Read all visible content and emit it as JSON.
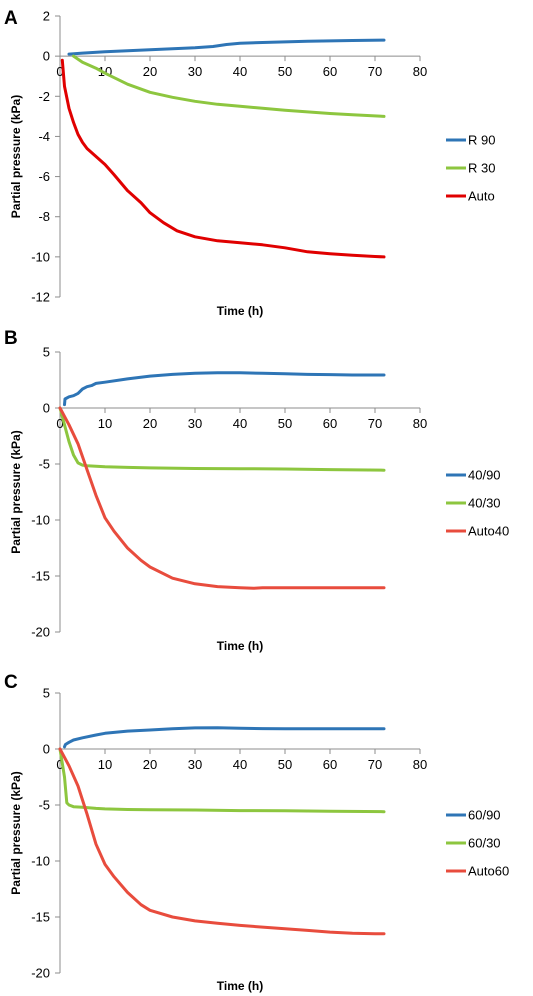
{
  "chart_data": [
    {
      "type": "line",
      "panel_label": "A",
      "xlabel": "Time (h)",
      "ylabel": "Partial pressure (kPa)",
      "xlim": [
        0,
        80
      ],
      "ylim": [
        -12,
        2
      ],
      "xticks": [
        0,
        10,
        20,
        30,
        40,
        50,
        60,
        70,
        80
      ],
      "yticks": [
        2,
        0,
        -2,
        -4,
        -6,
        -8,
        -10,
        -12
      ],
      "grid": false,
      "legend": "right",
      "series": [
        {
          "name": "R 90",
          "color": "#2e75b6",
          "x": [
            2,
            5,
            10,
            15,
            20,
            25,
            30,
            34,
            37,
            40,
            45,
            50,
            55,
            60,
            65,
            72
          ],
          "y": [
            0.1,
            0.15,
            0.22,
            0.27,
            0.32,
            0.37,
            0.42,
            0.48,
            0.58,
            0.64,
            0.68,
            0.71,
            0.74,
            0.76,
            0.78,
            0.8
          ]
        },
        {
          "name": "R 30",
          "color": "#8dc63f",
          "x": [
            3,
            5,
            8,
            10,
            15,
            20,
            25,
            30,
            35,
            40,
            45,
            50,
            55,
            60,
            65,
            72
          ],
          "y": [
            0.0,
            -0.3,
            -0.6,
            -0.85,
            -1.4,
            -1.8,
            -2.05,
            -2.25,
            -2.4,
            -2.5,
            -2.6,
            -2.7,
            -2.78,
            -2.86,
            -2.92,
            -3.0
          ]
        },
        {
          "name": "Auto",
          "color": "#e00000",
          "x": [
            0.5,
            1,
            2,
            3,
            4,
            5,
            6,
            8,
            10,
            12,
            15,
            18,
            20,
            23,
            26,
            30,
            35,
            40,
            45,
            50,
            55,
            60,
            65,
            70,
            72
          ],
          "y": [
            -0.2,
            -1.5,
            -2.6,
            -3.3,
            -3.9,
            -4.3,
            -4.6,
            -5.0,
            -5.4,
            -5.9,
            -6.7,
            -7.3,
            -7.8,
            -8.3,
            -8.7,
            -9.0,
            -9.2,
            -9.3,
            -9.4,
            -9.55,
            -9.75,
            -9.85,
            -9.92,
            -9.98,
            -10.0
          ]
        }
      ]
    },
    {
      "type": "line",
      "panel_label": "B",
      "xlabel": "Time (h)",
      "ylabel": "Partial pressure (kPa)",
      "xlim": [
        0,
        80
      ],
      "ylim": [
        -20,
        5
      ],
      "xticks": [
        0,
        10,
        20,
        30,
        40,
        50,
        60,
        70,
        80
      ],
      "yticks": [
        5,
        0,
        -5,
        -10,
        -15,
        -20
      ],
      "grid": false,
      "legend": "right",
      "series": [
        {
          "name": "40/90",
          "color": "#2e75b6",
          "x": [
            1,
            1.1,
            2,
            3,
            4,
            5,
            6,
            7,
            8,
            10,
            15,
            20,
            25,
            30,
            35,
            40,
            45,
            50,
            55,
            60,
            65,
            72
          ],
          "y": [
            0.3,
            0.8,
            1.0,
            1.1,
            1.3,
            1.7,
            1.9,
            2.0,
            2.2,
            2.3,
            2.6,
            2.85,
            3.0,
            3.1,
            3.15,
            3.15,
            3.1,
            3.05,
            3.0,
            2.98,
            2.95,
            2.95
          ]
        },
        {
          "name": "40/30",
          "color": "#8dc63f",
          "x": [
            0,
            1,
            2,
            3,
            4,
            5,
            6,
            8,
            10,
            15,
            20,
            30,
            40,
            50,
            60,
            72
          ],
          "y": [
            0,
            -1.5,
            -3.0,
            -4.2,
            -4.9,
            -5.1,
            -5.15,
            -5.2,
            -5.25,
            -5.3,
            -5.35,
            -5.4,
            -5.42,
            -5.45,
            -5.5,
            -5.55
          ]
        },
        {
          "name": "Auto40",
          "color": "#e84c3d",
          "x": [
            0,
            2,
            4,
            6,
            8,
            10,
            12,
            15,
            18,
            20,
            25,
            30,
            35,
            40,
            43,
            45,
            50,
            55,
            60,
            65,
            72
          ],
          "y": [
            0,
            -1.5,
            -3.2,
            -5.5,
            -7.8,
            -9.8,
            -11.0,
            -12.5,
            -13.6,
            -14.2,
            -15.2,
            -15.7,
            -15.95,
            -16.05,
            -16.1,
            -16.05,
            -16.05,
            -16.05,
            -16.05,
            -16.05,
            -16.05
          ]
        }
      ]
    },
    {
      "type": "line",
      "panel_label": "C",
      "xlabel": "Time (h)",
      "ylabel": "Partial pressure (kPa)",
      "xlim": [
        0,
        80
      ],
      "ylim": [
        -20,
        5
      ],
      "xticks": [
        0,
        10,
        20,
        30,
        40,
        50,
        60,
        70,
        80
      ],
      "yticks": [
        5,
        0,
        -5,
        -10,
        -15,
        -20
      ],
      "grid": false,
      "legend": "right",
      "series": [
        {
          "name": "60/90",
          "color": "#2e75b6",
          "x": [
            1,
            1.2,
            2,
            3,
            5,
            8,
            10,
            15,
            20,
            25,
            30,
            35,
            40,
            45,
            50,
            55,
            60,
            65,
            72
          ],
          "y": [
            0.2,
            0.4,
            0.6,
            0.8,
            1.0,
            1.25,
            1.4,
            1.6,
            1.7,
            1.8,
            1.88,
            1.9,
            1.85,
            1.82,
            1.8,
            1.8,
            1.8,
            1.8,
            1.8
          ]
        },
        {
          "name": "60/30",
          "color": "#8dc63f",
          "x": [
            0,
            1,
            1.5,
            2,
            3,
            5,
            8,
            10,
            15,
            20,
            30,
            40,
            50,
            60,
            72
          ],
          "y": [
            0,
            -2.5,
            -4.8,
            -5.0,
            -5.15,
            -5.2,
            -5.3,
            -5.35,
            -5.4,
            -5.42,
            -5.45,
            -5.5,
            -5.52,
            -5.55,
            -5.6
          ]
        },
        {
          "name": "Auto60",
          "color": "#e84c3d",
          "x": [
            0,
            2,
            4,
            6,
            8,
            10,
            12,
            15,
            18,
            20,
            25,
            30,
            35,
            40,
            45,
            50,
            55,
            60,
            65,
            70,
            72
          ],
          "y": [
            0,
            -1.5,
            -3.3,
            -5.8,
            -8.5,
            -10.3,
            -11.4,
            -12.8,
            -13.9,
            -14.4,
            -15.0,
            -15.35,
            -15.55,
            -15.75,
            -15.9,
            -16.05,
            -16.2,
            -16.35,
            -16.45,
            -16.5,
            -16.5
          ]
        }
      ]
    }
  ]
}
